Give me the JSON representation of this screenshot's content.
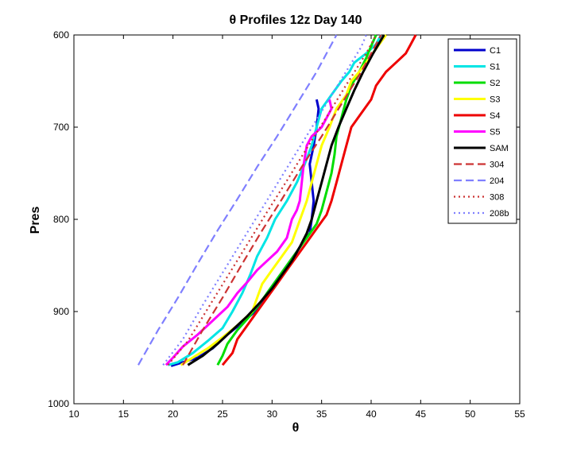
{
  "chart_data": {
    "type": "line",
    "title": "θ Profiles 12z Day 140",
    "xlabel": "θ",
    "ylabel": "Pres",
    "xlim": [
      10,
      55
    ],
    "ylim": [
      600,
      1000
    ],
    "y_reversed": true,
    "grid": false,
    "legend_position": "top-right",
    "x_ticks": [
      "10",
      "15",
      "20",
      "25",
      "30",
      "35",
      "40",
      "45",
      "50",
      "55"
    ],
    "y_ticks": [
      "600",
      "700",
      "800",
      "900",
      "1000"
    ],
    "series": [
      {
        "name": "C1",
        "color": "#0000cc",
        "style": "solid",
        "points": [
          [
            19.8,
            959
          ],
          [
            21.0,
            955
          ],
          [
            22.5,
            950
          ],
          [
            24.0,
            940
          ],
          [
            25.5,
            925
          ],
          [
            27.0,
            912
          ],
          [
            28.5,
            898
          ],
          [
            29.5,
            880
          ],
          [
            30.5,
            865
          ],
          [
            31.5,
            850
          ],
          [
            32.5,
            835
          ],
          [
            33.3,
            822
          ],
          [
            33.8,
            815
          ],
          [
            34.0,
            800
          ],
          [
            34.2,
            780
          ],
          [
            34.0,
            760
          ],
          [
            33.8,
            740
          ],
          [
            34.2,
            720
          ],
          [
            34.5,
            700
          ],
          [
            34.7,
            680
          ],
          [
            34.5,
            670
          ]
        ]
      },
      {
        "name": "S1",
        "color": "#00e5e5",
        "style": "solid",
        "points": [
          [
            19.5,
            958
          ],
          [
            20.5,
            955
          ],
          [
            22.0,
            945
          ],
          [
            23.5,
            932
          ],
          [
            25.0,
            918
          ],
          [
            26.0,
            900
          ],
          [
            27.0,
            880
          ],
          [
            27.8,
            860
          ],
          [
            28.5,
            840
          ],
          [
            29.5,
            820
          ],
          [
            30.3,
            800
          ],
          [
            31.5,
            780
          ],
          [
            32.5,
            760
          ],
          [
            33.3,
            740
          ],
          [
            34.0,
            720
          ],
          [
            34.5,
            700
          ],
          [
            35.0,
            680
          ],
          [
            36.0,
            665
          ],
          [
            37.0,
            650
          ],
          [
            37.8,
            640
          ],
          [
            38.3,
            630
          ],
          [
            39.5,
            620
          ],
          [
            40.5,
            610
          ],
          [
            41.0,
            600
          ]
        ]
      },
      {
        "name": "S2",
        "color": "#00dd00",
        "style": "solid",
        "points": [
          [
            24.5,
            958
          ],
          [
            25.0,
            948
          ],
          [
            25.5,
            935
          ],
          [
            26.5,
            920
          ],
          [
            27.5,
            908
          ],
          [
            28.5,
            895
          ],
          [
            29.5,
            880
          ],
          [
            30.5,
            865
          ],
          [
            31.5,
            850
          ],
          [
            32.5,
            835
          ],
          [
            33.5,
            820
          ],
          [
            34.5,
            805
          ],
          [
            35.0,
            790
          ],
          [
            35.5,
            770
          ],
          [
            36.0,
            750
          ],
          [
            36.3,
            730
          ],
          [
            36.5,
            710
          ],
          [
            37.0,
            690
          ],
          [
            37.5,
            670
          ],
          [
            38.0,
            655
          ],
          [
            38.8,
            640
          ],
          [
            39.5,
            625
          ],
          [
            40.0,
            612
          ],
          [
            40.5,
            600
          ]
        ]
      },
      {
        "name": "S3",
        "color": "#ffff00",
        "style": "solid",
        "points": [
          [
            20.8,
            958
          ],
          [
            22.0,
            950
          ],
          [
            23.5,
            940
          ],
          [
            25.0,
            928
          ],
          [
            26.5,
            915
          ],
          [
            28.0,
            900
          ],
          [
            28.5,
            885
          ],
          [
            29.0,
            870
          ],
          [
            30.0,
            855
          ],
          [
            31.0,
            840
          ],
          [
            32.0,
            825
          ],
          [
            32.5,
            810
          ],
          [
            33.0,
            795
          ],
          [
            33.5,
            780
          ],
          [
            34.0,
            760
          ],
          [
            34.5,
            740
          ],
          [
            35.0,
            720
          ],
          [
            35.8,
            700
          ],
          [
            36.5,
            680
          ],
          [
            37.5,
            665
          ],
          [
            38.0,
            650
          ],
          [
            38.8,
            640
          ],
          [
            39.5,
            630
          ],
          [
            40.5,
            615
          ],
          [
            41.5,
            600
          ]
        ]
      },
      {
        "name": "S4",
        "color": "#ee0000",
        "style": "solid",
        "points": [
          [
            25.0,
            958
          ],
          [
            26.0,
            945
          ],
          [
            26.5,
            930
          ],
          [
            27.5,
            915
          ],
          [
            28.5,
            900
          ],
          [
            29.5,
            885
          ],
          [
            30.5,
            870
          ],
          [
            31.5,
            855
          ],
          [
            32.5,
            840
          ],
          [
            33.5,
            825
          ],
          [
            34.5,
            810
          ],
          [
            35.5,
            795
          ],
          [
            36.0,
            780
          ],
          [
            36.5,
            760
          ],
          [
            37.0,
            740
          ],
          [
            37.5,
            720
          ],
          [
            38.0,
            700
          ],
          [
            39.0,
            685
          ],
          [
            40.0,
            670
          ],
          [
            40.5,
            655
          ],
          [
            41.5,
            640
          ],
          [
            42.5,
            630
          ],
          [
            43.5,
            620
          ],
          [
            44.0,
            610
          ],
          [
            44.5,
            600
          ]
        ]
      },
      {
        "name": "S5",
        "color": "#ff00ff",
        "style": "solid",
        "points": [
          [
            19.3,
            958
          ],
          [
            20.0,
            950
          ],
          [
            21.0,
            938
          ],
          [
            22.5,
            925
          ],
          [
            24.0,
            910
          ],
          [
            25.5,
            895
          ],
          [
            26.5,
            880
          ],
          [
            27.5,
            868
          ],
          [
            28.5,
            855
          ],
          [
            29.5,
            845
          ],
          [
            30.5,
            835
          ],
          [
            31.5,
            820
          ],
          [
            32.0,
            800
          ],
          [
            32.5,
            790
          ],
          [
            32.8,
            780
          ],
          [
            33.0,
            760
          ],
          [
            33.2,
            740
          ],
          [
            33.5,
            720
          ],
          [
            34.0,
            710
          ],
          [
            35.0,
            700
          ],
          [
            35.5,
            690
          ],
          [
            36.0,
            680
          ],
          [
            35.8,
            670
          ]
        ]
      },
      {
        "name": "SAM",
        "color": "#000000",
        "style": "solid",
        "points": [
          [
            21.5,
            958
          ],
          [
            23.0,
            948
          ],
          [
            24.5,
            935
          ],
          [
            26.0,
            920
          ],
          [
            27.5,
            905
          ],
          [
            28.8,
            890
          ],
          [
            30.0,
            875
          ],
          [
            31.0,
            860
          ],
          [
            32.0,
            845
          ],
          [
            32.8,
            830
          ],
          [
            33.5,
            815
          ],
          [
            34.0,
            800
          ],
          [
            34.5,
            780
          ],
          [
            35.0,
            760
          ],
          [
            35.5,
            740
          ],
          [
            36.0,
            720
          ],
          [
            36.7,
            700
          ],
          [
            37.5,
            680
          ],
          [
            38.3,
            660
          ],
          [
            39.2,
            640
          ],
          [
            40.2,
            620
          ],
          [
            41.3,
            600
          ]
        ]
      },
      {
        "name": "304",
        "color": "#cc3333",
        "style": "dashed",
        "points": [
          [
            21.0,
            958
          ],
          [
            23.0,
            920
          ],
          [
            25.0,
            885
          ],
          [
            27.0,
            848
          ],
          [
            29.0,
            812
          ],
          [
            31.0,
            778
          ],
          [
            33.0,
            743
          ],
          [
            35.0,
            710
          ],
          [
            37.0,
            675
          ],
          [
            39.0,
            640
          ],
          [
            41.0,
            600
          ]
        ]
      },
      {
        "name": "204",
        "color": "#7f7fff",
        "style": "dashed",
        "points": [
          [
            16.5,
            958
          ],
          [
            18.5,
            920
          ],
          [
            20.5,
            885
          ],
          [
            22.5,
            848
          ],
          [
            24.5,
            812
          ],
          [
            26.5,
            778
          ],
          [
            28.5,
            743
          ],
          [
            30.5,
            710
          ],
          [
            32.5,
            675
          ],
          [
            34.5,
            640
          ],
          [
            36.5,
            600
          ]
        ]
      },
      {
        "name": "308",
        "color": "#cc3333",
        "style": "dotted",
        "points": [
          [
            19.5,
            958
          ],
          [
            21.5,
            932
          ],
          [
            23.5,
            897
          ],
          [
            25.5,
            862
          ],
          [
            27.5,
            827
          ],
          [
            29.5,
            792
          ],
          [
            31.5,
            758
          ],
          [
            33.5,
            723
          ],
          [
            35.5,
            689
          ],
          [
            37.5,
            654
          ],
          [
            39.5,
            620
          ],
          [
            40.5,
            600
          ]
        ]
      },
      {
        "name": "208b",
        "color": "#7f7fff",
        "style": "dotted",
        "points": [
          [
            19.0,
            958
          ],
          [
            21.0,
            930
          ],
          [
            23.0,
            893
          ],
          [
            25.0,
            858
          ],
          [
            27.0,
            823
          ],
          [
            29.0,
            788
          ],
          [
            31.0,
            753
          ],
          [
            33.0,
            718
          ],
          [
            35.0,
            683
          ],
          [
            37.0,
            648
          ],
          [
            39.0,
            613
          ],
          [
            39.5,
            600
          ]
        ]
      }
    ]
  }
}
